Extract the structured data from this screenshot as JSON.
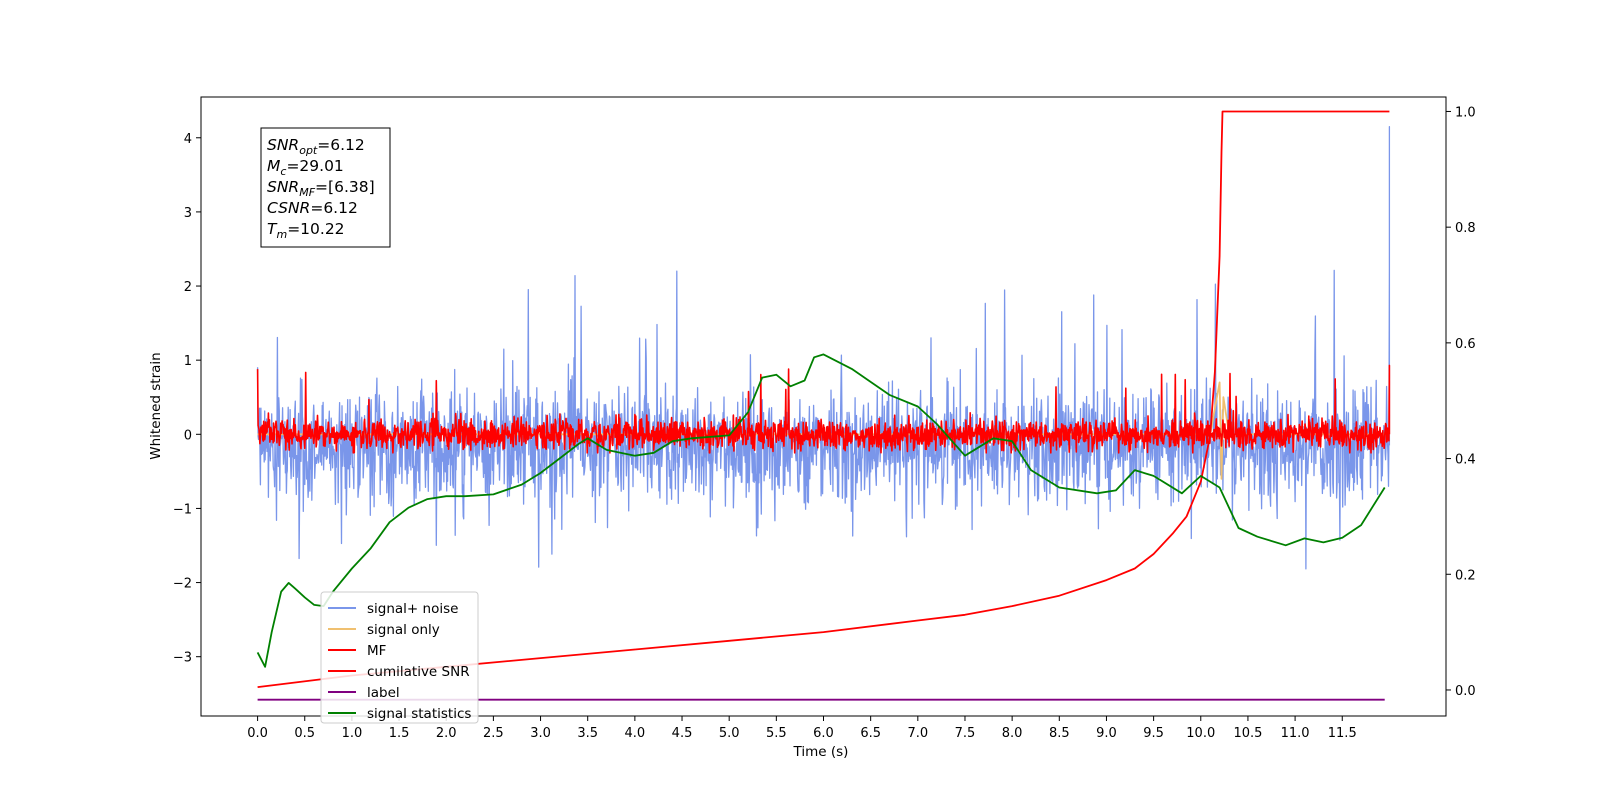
{
  "chart_data": {
    "type": "line",
    "xlabel": "Time (s)",
    "ylabel": "Whitened strain",
    "xlim": [
      -0.6,
      12.6
    ],
    "ylim": [
      -3.8,
      4.55
    ],
    "y2lim": [
      -0.045,
      1.025
    ],
    "x_ticks": [
      "0.0",
      "0.5",
      "1.0",
      "1.5",
      "2.0",
      "2.5",
      "3.0",
      "3.5",
      "4.0",
      "4.5",
      "5.0",
      "5.5",
      "6.0",
      "6.5",
      "7.0",
      "7.5",
      "8.0",
      "8.5",
      "9.0",
      "9.5",
      "10.0",
      "10.5",
      "11.0",
      "11.5"
    ],
    "y_ticks": [
      "4",
      "3",
      "2",
      "1",
      "0",
      "−1",
      "−2",
      "−3"
    ],
    "y2_ticks": [
      "1.0",
      "0.8",
      "0.6",
      "0.4",
      "0.2",
      "0.0"
    ],
    "stats_box": [
      {
        "base": "SNR",
        "sub": "opt",
        "value": "=6.12"
      },
      {
        "base": "M",
        "sub": "c",
        "value": "=29.01"
      },
      {
        "base": "SNR",
        "sub": "MF",
        "value": "=[6.38]"
      },
      {
        "base": "CSNR",
        "sub": "",
        "value": "=6.12"
      },
      {
        "base": "T",
        "sub": "m",
        "value": "=10.22"
      }
    ],
    "series": [
      {
        "name": "signal+ noise",
        "color": "#4169e1",
        "axis": "left",
        "kind": "noise",
        "x_range": [
          0,
          12
        ],
        "mean": -0.15,
        "std": 0.38,
        "upper_spikes_to": 2.25,
        "lower_spikes_to": -1.85,
        "end_value": 4.15
      },
      {
        "name": "signal only",
        "color": "#f0c070",
        "axis": "left",
        "kind": "blip",
        "x": [
          0,
          10.1,
          10.2,
          10.22,
          10.24,
          10.3,
          12
        ],
        "y": [
          0,
          0,
          0.7,
          -0.6,
          0.5,
          0,
          0
        ]
      },
      {
        "name": "MF",
        "color": "#ff0000",
        "axis": "left",
        "kind": "noise",
        "x_range": [
          0,
          12
        ],
        "mean": 0.0,
        "std": 0.1,
        "upper_spikes_to": 0.88,
        "lower_spikes_to": -0.25,
        "start_value": 1.0,
        "end_value": 0.93
      },
      {
        "name": "cumilative SNR",
        "color": "#ff0000",
        "axis": "right",
        "x": [
          0,
          1,
          2,
          3,
          4,
          5,
          6,
          7,
          7.5,
          8,
          8.5,
          9,
          9.3,
          9.5,
          9.7,
          9.85,
          10.0,
          10.1,
          10.15,
          10.2,
          10.22,
          10.23,
          12
        ],
        "y": [
          0.005,
          0.025,
          0.04,
          0.055,
          0.07,
          0.085,
          0.1,
          0.12,
          0.13,
          0.145,
          0.163,
          0.19,
          0.21,
          0.235,
          0.27,
          0.3,
          0.36,
          0.44,
          0.55,
          0.75,
          0.93,
          1.0,
          1.0
        ]
      },
      {
        "name": "label",
        "color": "#800080",
        "axis": "left",
        "x": [
          0,
          11.95
        ],
        "y": [
          -3.58,
          -3.58
        ]
      },
      {
        "name": "signal statistics",
        "color": "#008000",
        "axis": "right",
        "x": [
          0,
          0.08,
          0.15,
          0.25,
          0.33,
          0.4,
          0.5,
          0.6,
          0.7,
          0.8,
          1.0,
          1.2,
          1.4,
          1.6,
          1.8,
          2.0,
          2.2,
          2.5,
          2.8,
          3.0,
          3.2,
          3.4,
          3.5,
          3.7,
          4.0,
          4.2,
          4.4,
          4.6,
          5.0,
          5.2,
          5.35,
          5.5,
          5.65,
          5.8,
          5.9,
          6.0,
          6.3,
          6.7,
          7.0,
          7.2,
          7.5,
          7.8,
          8.0,
          8.2,
          8.5,
          8.9,
          9.1,
          9.3,
          9.5,
          9.8,
          10.0,
          10.2,
          10.4,
          10.6,
          10.9,
          11.1,
          11.3,
          11.5,
          11.7,
          11.95
        ],
        "y": [
          0.065,
          0.04,
          0.1,
          0.17,
          0.185,
          0.175,
          0.16,
          0.147,
          0.145,
          0.17,
          0.21,
          0.245,
          0.29,
          0.315,
          0.33,
          0.335,
          0.335,
          0.338,
          0.355,
          0.375,
          0.4,
          0.425,
          0.435,
          0.415,
          0.405,
          0.41,
          0.43,
          0.435,
          0.44,
          0.48,
          0.54,
          0.545,
          0.525,
          0.535,
          0.575,
          0.58,
          0.555,
          0.51,
          0.49,
          0.46,
          0.405,
          0.435,
          0.43,
          0.38,
          0.35,
          0.34,
          0.345,
          0.38,
          0.37,
          0.34,
          0.37,
          0.35,
          0.28,
          0.265,
          0.25,
          0.262,
          0.255,
          0.263,
          0.285,
          0.35
        ]
      }
    ]
  }
}
